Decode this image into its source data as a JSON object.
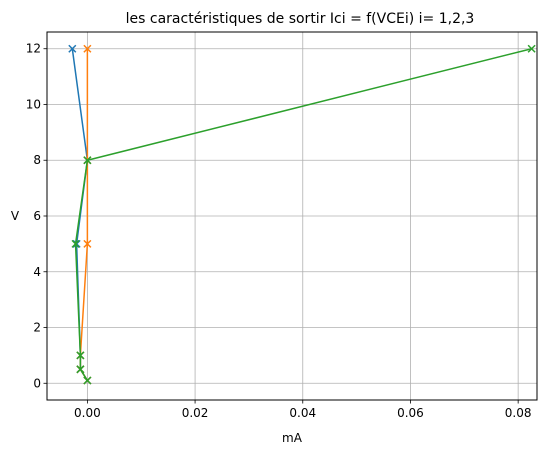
{
  "chart_data": {
    "type": "line",
    "title": "les caractéristiques de sortir Ici = f(VCEi) i= 1,2,3",
    "xlabel": "mA",
    "ylabel": "V",
    "xlim": [
      -0.0075,
      0.0835
    ],
    "ylim": [
      -0.6,
      12.6
    ],
    "xticks": [
      0.0,
      0.02,
      0.04,
      0.06,
      0.08
    ],
    "xtick_labels": [
      "0.00",
      "0.02",
      "0.04",
      "0.06",
      "0.08"
    ],
    "yticks": [
      0,
      2,
      4,
      6,
      8,
      10,
      12
    ],
    "ytick_labels": [
      "0",
      "2",
      "4",
      "6",
      "8",
      "10",
      "12"
    ],
    "grid": true,
    "marker": "x",
    "series": [
      {
        "color": "#1f77b4",
        "points": [
          [
            0.0,
            0.1
          ],
          [
            -0.0013,
            0.5
          ],
          [
            -0.0013,
            1.0
          ],
          [
            -0.002,
            5.0
          ],
          [
            0.0,
            8.0
          ],
          [
            -0.0028,
            12.0
          ]
        ]
      },
      {
        "color": "#ff7f0e",
        "points": [
          [
            0.0,
            0.1
          ],
          [
            -0.0013,
            0.5
          ],
          [
            -0.0013,
            1.0
          ],
          [
            0.0,
            5.0
          ],
          [
            0.0,
            8.0
          ],
          [
            0.0,
            12.0
          ]
        ]
      },
      {
        "color": "#2ca02c",
        "points": [
          [
            0.0,
            0.1
          ],
          [
            -0.0013,
            0.5
          ],
          [
            -0.0013,
            1.0
          ],
          [
            -0.0022,
            5.0
          ],
          [
            0.0,
            8.0
          ],
          [
            0.0825,
            12.0
          ]
        ]
      }
    ]
  }
}
